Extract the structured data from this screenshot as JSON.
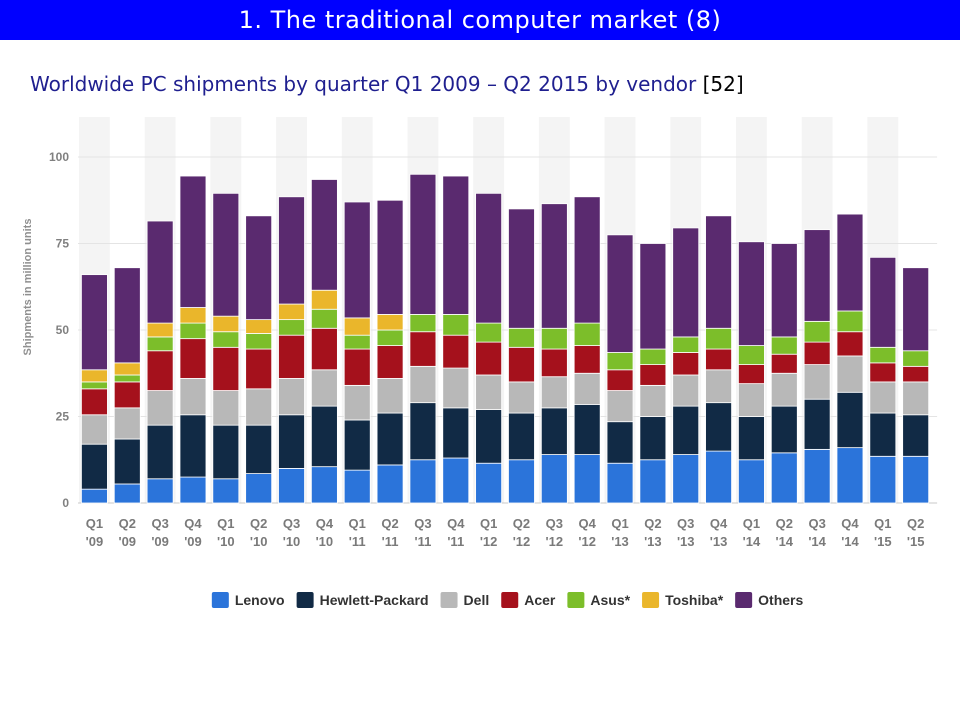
{
  "slide": {
    "title": "1. The traditional computer market (8)",
    "subtitle": "Worldwide PC shipments by quarter Q1 2009 – Q2 2015 by vendor",
    "reference": "[52]",
    "title_bar_color": "#0000ff"
  },
  "chart_data": {
    "type": "bar",
    "stacked": true,
    "title": "",
    "xlabel": "",
    "ylabel": "Shipments in million units",
    "ylim": [
      0,
      110
    ],
    "yticks": [
      0,
      25,
      50,
      75,
      100
    ],
    "grid": true,
    "legend_position": "bottom",
    "categories": [
      [
        "Q1",
        "'09"
      ],
      [
        "Q2",
        "'09"
      ],
      [
        "Q3",
        "'09"
      ],
      [
        "Q4",
        "'09"
      ],
      [
        "Q1",
        "'10"
      ],
      [
        "Q2",
        "'10"
      ],
      [
        "Q3",
        "'10"
      ],
      [
        "Q4",
        "'10"
      ],
      [
        "Q1",
        "'11"
      ],
      [
        "Q2",
        "'11"
      ],
      [
        "Q3",
        "'11"
      ],
      [
        "Q4",
        "'11"
      ],
      [
        "Q1",
        "'12"
      ],
      [
        "Q2",
        "'12"
      ],
      [
        "Q3",
        "'12"
      ],
      [
        "Q4",
        "'12"
      ],
      [
        "Q1",
        "'13"
      ],
      [
        "Q2",
        "'13"
      ],
      [
        "Q3",
        "'13"
      ],
      [
        "Q4",
        "'13"
      ],
      [
        "Q1",
        "'14"
      ],
      [
        "Q2",
        "'14"
      ],
      [
        "Q3",
        "'14"
      ],
      [
        "Q4",
        "'14"
      ],
      [
        "Q1",
        "'15"
      ],
      [
        "Q2",
        "'15"
      ]
    ],
    "series": [
      {
        "name": "Lenovo",
        "color": "#2b74da",
        "values": [
          4,
          5.5,
          7,
          7.5,
          7,
          8.5,
          10,
          10.5,
          9.5,
          11,
          12.5,
          13,
          11.5,
          12.5,
          14,
          14,
          11.5,
          12.5,
          14,
          15,
          12.5,
          14.5,
          15.5,
          16,
          13.5,
          13.5
        ]
      },
      {
        "name": "Hewlett-Packard",
        "color": "#112a45",
        "values": [
          13,
          13,
          15.5,
          18,
          15.5,
          14,
          15.5,
          17.5,
          14.5,
          15,
          16.5,
          14.5,
          15.5,
          13.5,
          13.5,
          14.5,
          12,
          12.5,
          14,
          14,
          12.5,
          13.5,
          14.5,
          16,
          12.5,
          12
        ]
      },
      {
        "name": "Dell",
        "color": "#b8b8b8",
        "values": [
          8.5,
          9,
          10,
          10.5,
          10,
          10.5,
          10.5,
          10.5,
          10,
          10,
          10.5,
          11.5,
          10,
          9,
          9,
          9,
          9,
          9,
          9,
          9.5,
          9.5,
          9.5,
          10,
          10.5,
          9,
          9.5
        ]
      },
      {
        "name": "Acer",
        "color": "#a5111c",
        "values": [
          7.5,
          7.5,
          11.5,
          11.5,
          12.5,
          11.5,
          12.5,
          12,
          10.5,
          9.5,
          10,
          9.5,
          9.5,
          10,
          8,
          8,
          6,
          6,
          6.5,
          6,
          5.5,
          5.5,
          6.5,
          7,
          5.5,
          4.5
        ]
      },
      {
        "name": "Asus*",
        "color": "#7cbe2a",
        "values": [
          2,
          2,
          4,
          4.5,
          4.5,
          4.5,
          4.5,
          5.5,
          4,
          4.5,
          5,
          6,
          5.5,
          5.5,
          6,
          6.5,
          5,
          4.5,
          4.5,
          6,
          5.5,
          5,
          6,
          6,
          4.5,
          4.5
        ]
      },
      {
        "name": "Toshiba*",
        "color": "#eab62b",
        "values": [
          3.5,
          3.5,
          4,
          4.5,
          4.5,
          4,
          4.5,
          5.5,
          5,
          4.5,
          0,
          0,
          0,
          0,
          0,
          0,
          0,
          0,
          0,
          0,
          0,
          0,
          0,
          0,
          0,
          0
        ]
      },
      {
        "name": "Others",
        "color": "#5a2a6f",
        "values": [
          27.5,
          27.5,
          29.5,
          38,
          35.5,
          30,
          31,
          32,
          33.5,
          33,
          40.5,
          40,
          37.5,
          34.5,
          36,
          36.5,
          34,
          30.5,
          31.5,
          32.5,
          30,
          27,
          26.5,
          28,
          26,
          24
        ]
      }
    ]
  }
}
